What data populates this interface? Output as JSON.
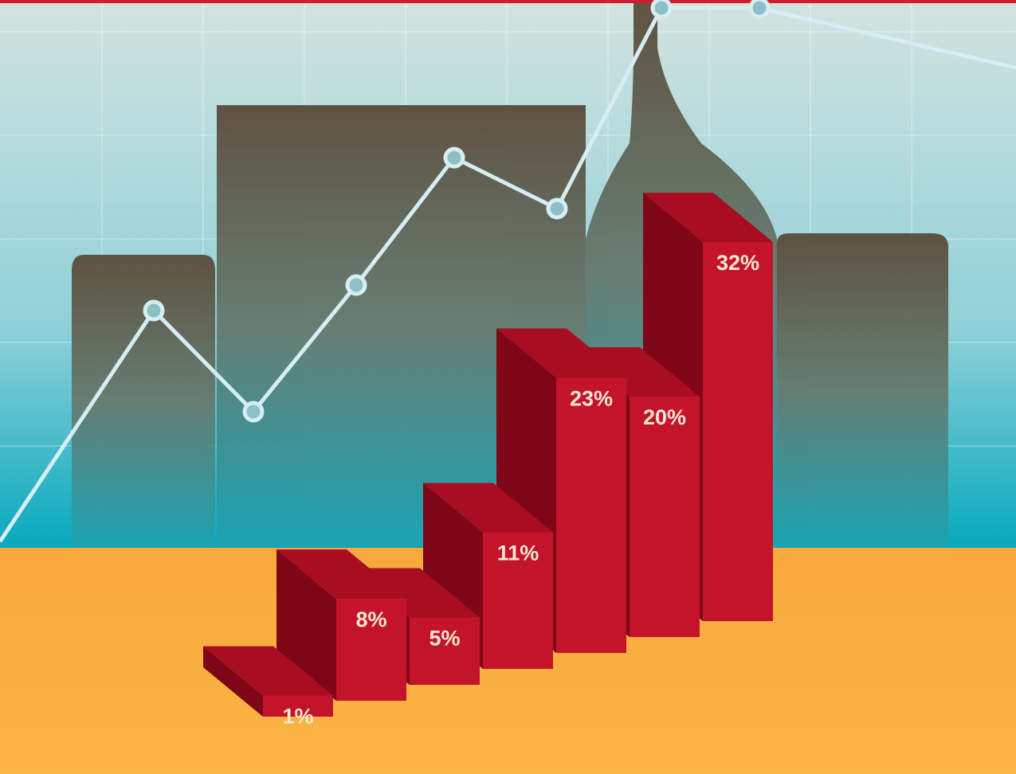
{
  "chart_data": {
    "type": "bar",
    "categories": [
      null,
      null,
      null,
      null,
      null,
      null,
      null
    ],
    "values": [
      1,
      8,
      5,
      11,
      23,
      20,
      32
    ],
    "value_labels": [
      "1%",
      "8%",
      "5%",
      "11%",
      "23%",
      "20%",
      "32%"
    ],
    "color": "#c4142c"
  }
}
